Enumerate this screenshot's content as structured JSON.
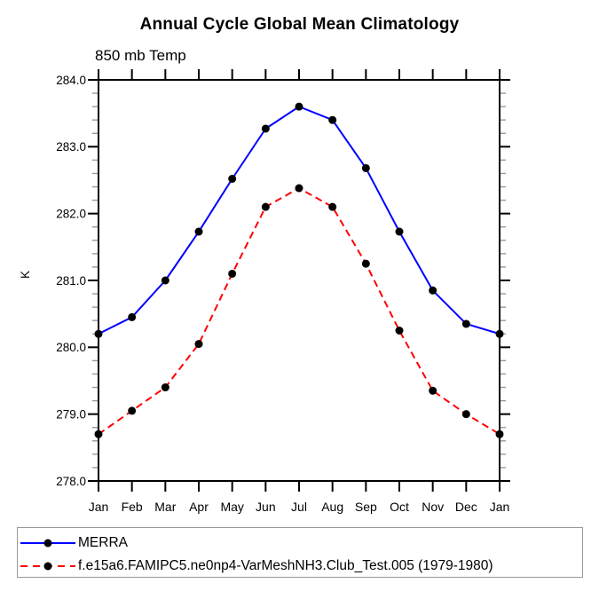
{
  "chart": {
    "title": "Annual Cycle Global Mean Climatology",
    "subtitle": "850 mb Temp",
    "ylabel": "K"
  },
  "legend": {
    "items": [
      {
        "label": "MERRA",
        "color": "#0000ff",
        "dash": "solid",
        "dot_color": "#000000"
      },
      {
        "label": "f.e15a6.FAMIPC5.ne0np4-VarMeshNH3.Club_Test.005 (1979-1980)",
        "color": "#ff0000",
        "dash": "dashed",
        "dot_color": "#000000"
      }
    ]
  },
  "chart_data": {
    "type": "line",
    "title": "Annual Cycle Global Mean Climatology",
    "subtitle": "850 mb Temp",
    "xlabel": "",
    "ylabel": "K",
    "categories": [
      "Jan",
      "Feb",
      "Mar",
      "Apr",
      "May",
      "Jun",
      "Jul",
      "Aug",
      "Sep",
      "Oct",
      "Nov",
      "Dec",
      "Jan"
    ],
    "series": [
      {
        "name": "MERRA",
        "color": "#0000ff",
        "line_style": "solid",
        "marker": "filled-circle",
        "marker_color": "#000000",
        "values": [
          280.2,
          280.45,
          281.0,
          281.73,
          282.52,
          283.27,
          283.6,
          283.4,
          282.68,
          281.73,
          280.85,
          280.35,
          280.2
        ]
      },
      {
        "name": "f.e15a6.FAMIPC5.ne0np4-VarMeshNH3.Club_Test.005 (1979-1980)",
        "color": "#ff0000",
        "line_style": "dashed",
        "marker": "filled-circle",
        "marker_color": "#000000",
        "values": [
          278.7,
          279.05,
          279.4,
          280.05,
          281.1,
          282.1,
          282.38,
          282.1,
          281.25,
          280.25,
          279.35,
          279.0,
          278.7
        ]
      }
    ],
    "ylim": [
      278.0,
      284.0
    ],
    "ytick_major_interval": 1.0,
    "ytick_minor_interval": 0.2,
    "ytick_labels": [
      "278.0",
      "279.0",
      "280.0",
      "281.0",
      "282.0",
      "283.0",
      "284.0"
    ],
    "grid": false,
    "legend_position": "bottom-left-box"
  }
}
